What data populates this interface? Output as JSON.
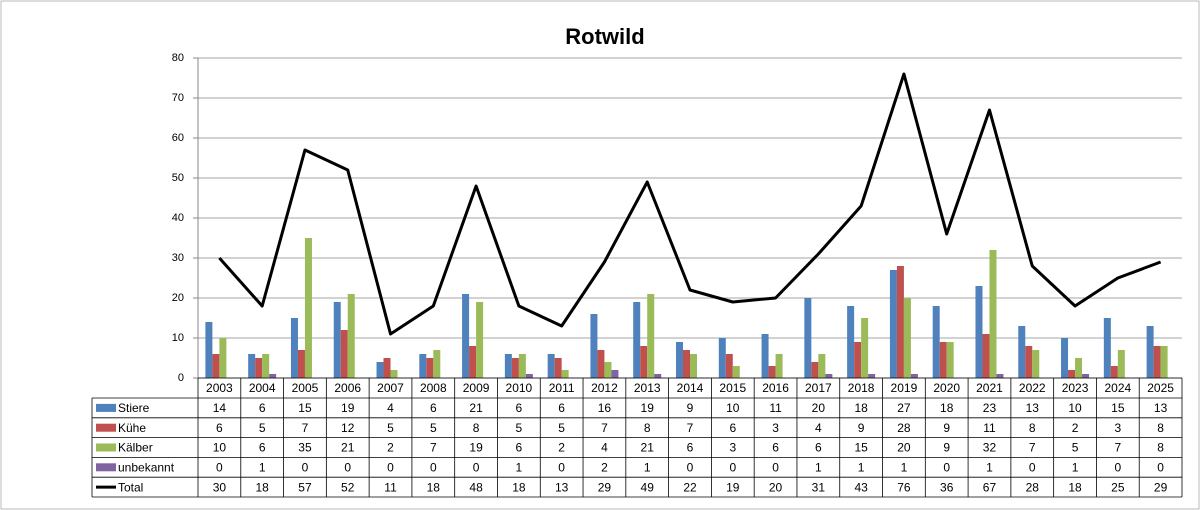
{
  "chart_data": {
    "type": "bar",
    "title": "Rotwild",
    "categories": [
      "2003",
      "2004",
      "2005",
      "2006",
      "2007",
      "2008",
      "2009",
      "2010",
      "2011",
      "2012",
      "2013",
      "2014",
      "2015",
      "2016",
      "2017",
      "2018",
      "2019",
      "2020",
      "2021",
      "2022",
      "2023",
      "2024",
      "2025"
    ],
    "series": [
      {
        "name": "Stiere",
        "color": "#4f81bd",
        "values": [
          14,
          6,
          15,
          19,
          4,
          6,
          21,
          6,
          6,
          16,
          19,
          9,
          10,
          11,
          20,
          18,
          27,
          18,
          23,
          13,
          10,
          15,
          13
        ]
      },
      {
        "name": "Kühe",
        "color": "#c0504d",
        "values": [
          6,
          5,
          7,
          12,
          5,
          5,
          8,
          5,
          5,
          7,
          8,
          7,
          6,
          3,
          4,
          9,
          28,
          9,
          11,
          8,
          2,
          3,
          8
        ]
      },
      {
        "name": "Kälber",
        "color": "#9bbb59",
        "values": [
          10,
          6,
          35,
          21,
          2,
          7,
          19,
          6,
          2,
          4,
          21,
          6,
          3,
          6,
          6,
          15,
          20,
          9,
          32,
          7,
          5,
          7,
          8
        ]
      },
      {
        "name": "unbekannt",
        "color": "#8064a2",
        "values": [
          0,
          1,
          0,
          0,
          0,
          0,
          0,
          1,
          0,
          2,
          1,
          0,
          0,
          0,
          1,
          1,
          1,
          0,
          1,
          0,
          1,
          0,
          0
        ]
      },
      {
        "name": "Total",
        "color": "#000000",
        "type": "line",
        "values": [
          30,
          18,
          57,
          52,
          11,
          18,
          48,
          18,
          13,
          29,
          49,
          22,
          19,
          20,
          31,
          43,
          76,
          36,
          67,
          28,
          18,
          25,
          29
        ]
      }
    ],
    "ylim": [
      0,
      80
    ],
    "yticks": [
      0,
      10,
      20,
      30,
      40,
      50,
      60,
      70,
      80
    ],
    "grid": true
  }
}
